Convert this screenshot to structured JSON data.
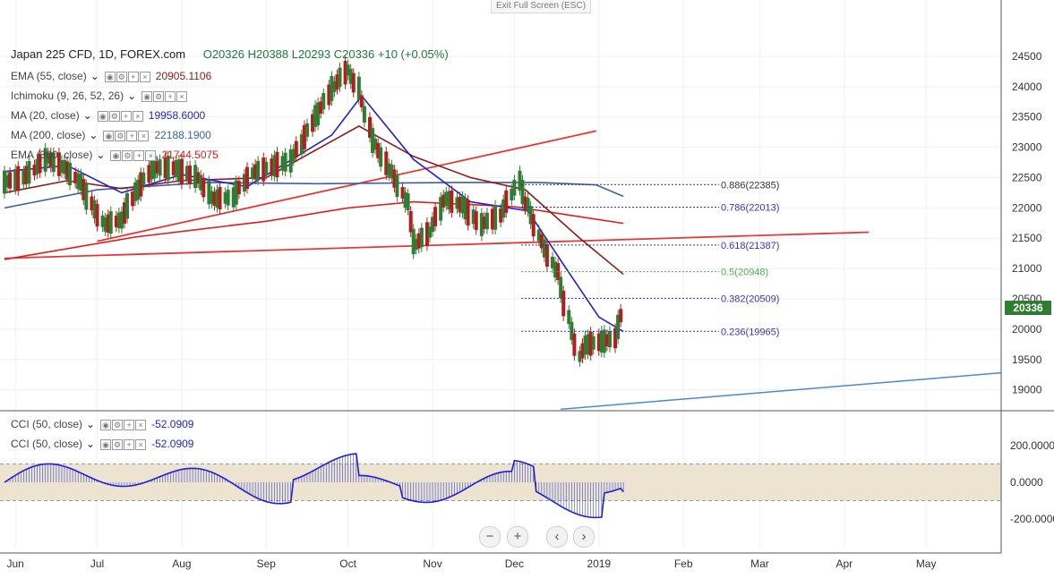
{
  "header": {
    "exit_label": "Exit Full Screen (ESC)"
  },
  "symbol": {
    "title": "Japan 225 CFD, 1D, FOREX.com",
    "ohlc": "O20326  H20388  L20293  C20336  +10 (+0.05%)"
  },
  "legend": [
    {
      "name": "EMA (55, close)",
      "value": "20905.1106",
      "color": "#8b1a1a"
    },
    {
      "name": "Ichimoku (9, 26, 52, 26)",
      "value": "",
      "color": "#888888"
    },
    {
      "name": "MA (20, close)",
      "value": "19958.6000",
      "color": "#1f1fd6"
    },
    {
      "name": "MA (200, close)",
      "value": "22188.1900",
      "color": "#3a5fa8"
    },
    {
      "name": "EMA (300, close)",
      "value": "21744.5075",
      "color": "#e01b1b"
    }
  ],
  "cci_legend": [
    {
      "name": "CCI (50, close)",
      "value": "-52.0909"
    },
    {
      "name": "CCI (50, close)",
      "value": "-52.0909"
    }
  ],
  "last_price": "20336",
  "nav": {
    "zoom_out": "−",
    "zoom_in": "+",
    "back": "‹",
    "forward": "›"
  },
  "chart_data": [
    {
      "type": "candlestick",
      "title": "Japan 225 CFD, 1D, FOREX.com",
      "y_ticks": [
        19000,
        19500,
        20000,
        20500,
        21000,
        21500,
        22000,
        22500,
        23000,
        23500,
        24000,
        24500
      ],
      "ylim": [
        18670,
        24780
      ],
      "x_labels": [
        "Jun",
        "Jul",
        "Aug",
        "Sep",
        "Oct",
        "Nov",
        "Dec",
        "2019",
        "Feb",
        "Mar",
        "Apr",
        "May"
      ],
      "ohlc_path": [
        {
          "d": "2018-05-28",
          "o": 22200,
          "c": 22650
        },
        {
          "d": "2018-06-04",
          "o": 22600,
          "c": 22400
        },
        {
          "d": "2018-06-08",
          "o": 22450,
          "c": 22800
        },
        {
          "d": "2018-06-13",
          "o": 22750,
          "c": 22900
        },
        {
          "d": "2018-06-19",
          "o": 22850,
          "c": 22500
        },
        {
          "d": "2018-06-25",
          "o": 22550,
          "c": 22300
        },
        {
          "d": "2018-06-29",
          "o": 22250,
          "c": 21900
        },
        {
          "d": "2018-07-04",
          "o": 21950,
          "c": 21500
        },
        {
          "d": "2018-07-10",
          "o": 21600,
          "c": 22000
        },
        {
          "d": "2018-07-16",
          "o": 22000,
          "c": 22600
        },
        {
          "d": "2018-07-22",
          "o": 22550,
          "c": 22800
        },
        {
          "d": "2018-07-30",
          "o": 22700,
          "c": 22600
        },
        {
          "d": "2018-08-07",
          "o": 22600,
          "c": 22400
        },
        {
          "d": "2018-08-13",
          "o": 22300,
          "c": 22000
        },
        {
          "d": "2018-08-20",
          "o": 22050,
          "c": 22300
        },
        {
          "d": "2018-08-27",
          "o": 22350,
          "c": 22800
        },
        {
          "d": "2018-09-03",
          "o": 22750,
          "c": 22600
        },
        {
          "d": "2018-09-10",
          "o": 22650,
          "c": 22900
        },
        {
          "d": "2018-09-14",
          "o": 22900,
          "c": 23200
        },
        {
          "d": "2018-09-20",
          "o": 23300,
          "c": 23800
        },
        {
          "d": "2018-09-26",
          "o": 23850,
          "c": 24150
        },
        {
          "d": "2018-10-01",
          "o": 24200,
          "c": 24350
        },
        {
          "d": "2018-10-05",
          "o": 24250,
          "c": 23700
        },
        {
          "d": "2018-10-11",
          "o": 23500,
          "c": 22600
        },
        {
          "d": "2018-10-17",
          "o": 22700,
          "c": 22500
        },
        {
          "d": "2018-10-23",
          "o": 22400,
          "c": 21800
        },
        {
          "d": "2018-10-26",
          "o": 21700,
          "c": 21100
        },
        {
          "d": "2018-10-31",
          "o": 21300,
          "c": 21900
        },
        {
          "d": "2018-11-06",
          "o": 21900,
          "c": 22400
        },
        {
          "d": "2018-11-12",
          "o": 22300,
          "c": 21800
        },
        {
          "d": "2018-11-19",
          "o": 21850,
          "c": 21600
        },
        {
          "d": "2018-11-26",
          "o": 21650,
          "c": 22100
        },
        {
          "d": "2018-12-03",
          "o": 22200,
          "c": 22700
        },
        {
          "d": "2018-12-06",
          "o": 22500,
          "c": 21600
        },
        {
          "d": "2018-12-11",
          "o": 21700,
          "c": 21200
        },
        {
          "d": "2018-12-17",
          "o": 21300,
          "c": 20600
        },
        {
          "d": "2018-12-21",
          "o": 20500,
          "c": 19900
        },
        {
          "d": "2018-12-25",
          "o": 19800,
          "c": 19300
        },
        {
          "d": "2018-12-28",
          "o": 19500,
          "c": 20000
        },
        {
          "d": "2019-01-03",
          "o": 20100,
          "c": 19500
        },
        {
          "d": "2019-01-07",
          "o": 19600,
          "c": 20100
        },
        {
          "d": "2019-01-10",
          "o": 20150,
          "c": 20350
        }
      ]
    },
    {
      "type": "area",
      "title": "CCI (50, close)",
      "y_ticks": [
        "200.0000",
        "0.0000",
        "-200.0000"
      ],
      "band": [
        100,
        -100
      ],
      "last_value": -52.0909
    }
  ],
  "fib_levels": [
    {
      "label": "0.886(22385)",
      "value": 22385,
      "color": "#333333"
    },
    {
      "label": "0.786(22013)",
      "value": 22013,
      "color": "#3333cc"
    },
    {
      "label": "0.618(21387)",
      "value": 21387,
      "color": "#3333cc"
    },
    {
      "label": "0.5(20948)",
      "value": 20948,
      "color": "#4caf50"
    },
    {
      "label": "0.382(20509)",
      "value": 20509,
      "color": "#3333cc"
    },
    {
      "label": "0.236(19965)",
      "value": 19965,
      "color": "#3333cc"
    }
  ]
}
